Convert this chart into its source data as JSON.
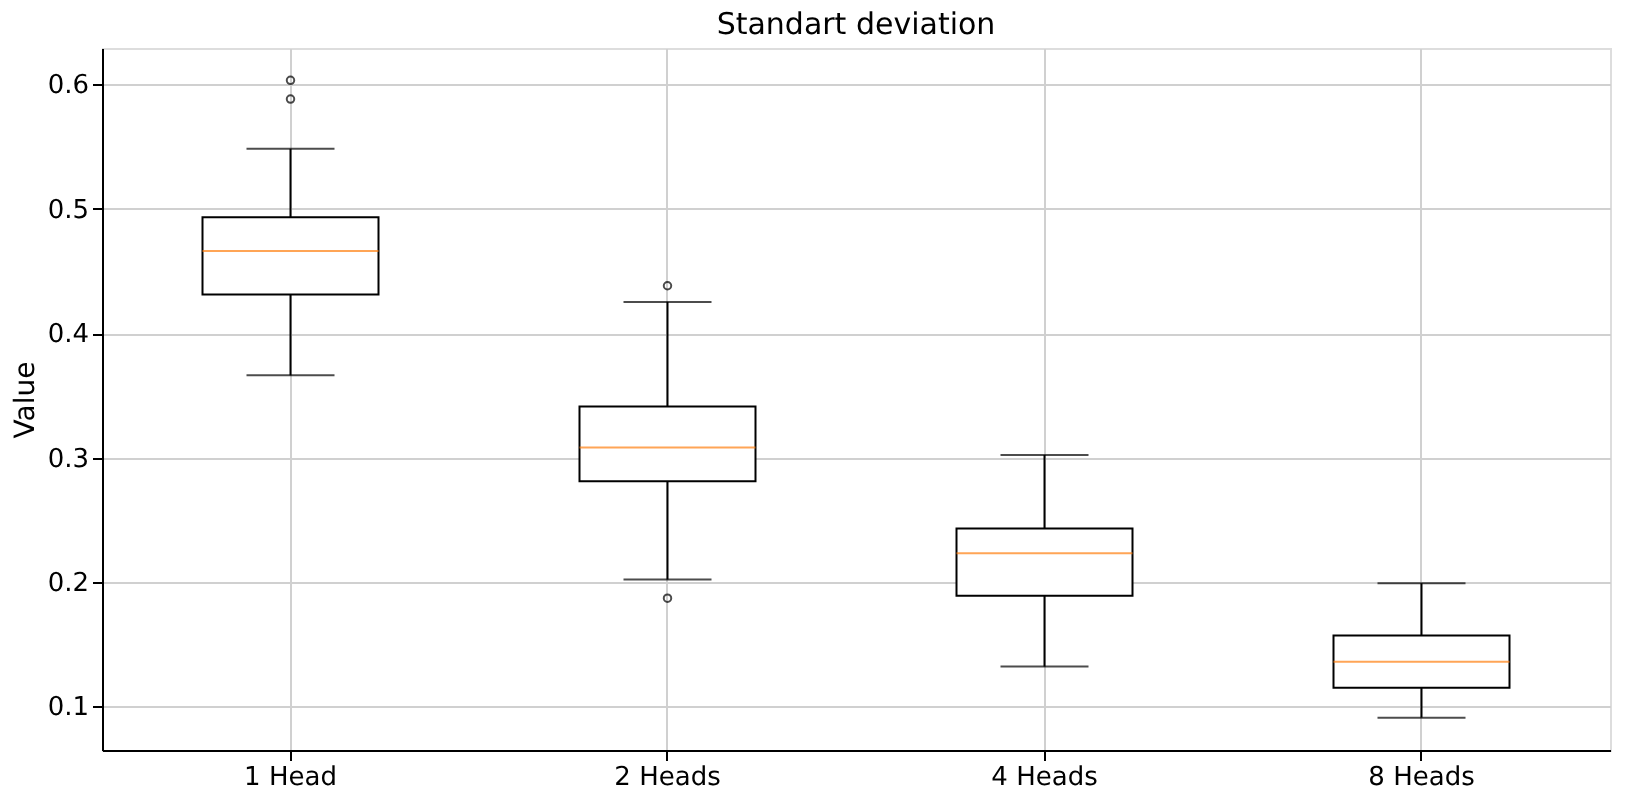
{
  "chart_data": {
    "type": "box",
    "title": "Standart deviation",
    "ylabel": "Value",
    "categories": [
      "1 Head",
      "2 Heads",
      "4 Heads",
      "8 Heads"
    ],
    "boxes": [
      {
        "low": 0.366,
        "q1": 0.431,
        "median": 0.466,
        "q3": 0.493,
        "high": 0.548,
        "outliers": [
          0.603,
          0.588
        ]
      },
      {
        "low": 0.202,
        "q1": 0.281,
        "median": 0.308,
        "q3": 0.341,
        "high": 0.425,
        "outliers": [
          0.438,
          0.187
        ]
      },
      {
        "low": 0.132,
        "q1": 0.189,
        "median": 0.223,
        "q3": 0.243,
        "high": 0.302
      },
      {
        "low": 0.091,
        "q1": 0.115,
        "median": 0.136,
        "q3": 0.157,
        "high": 0.199
      }
    ],
    "ylim": [
      0.065,
      0.629
    ],
    "yticks": [
      0.1,
      0.2,
      0.3,
      0.4,
      0.5,
      0.6
    ],
    "grid": true
  }
}
